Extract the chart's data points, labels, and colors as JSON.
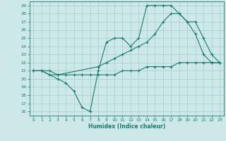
{
  "xlabel": "Humidex (Indice chaleur)",
  "background_color": "#cce8e8",
  "grid_color": "#aacccc",
  "line_color": "#1a7a6e",
  "xlim": [
    -0.5,
    23.5
  ],
  "ylim": [
    15.5,
    29.5
  ],
  "xticks": [
    0,
    1,
    2,
    3,
    4,
    5,
    6,
    7,
    8,
    9,
    10,
    11,
    12,
    13,
    14,
    15,
    16,
    17,
    18,
    19,
    20,
    21,
    22,
    23
  ],
  "yticks": [
    16,
    17,
    18,
    19,
    20,
    21,
    22,
    23,
    24,
    25,
    26,
    27,
    28,
    29
  ],
  "line1_x": [
    0,
    1,
    3,
    4,
    5,
    6,
    7,
    8,
    9,
    10,
    11,
    12,
    13,
    14,
    15,
    16,
    17,
    18,
    19,
    20,
    21,
    22,
    23
  ],
  "line1_y": [
    21,
    21,
    20,
    19.5,
    18.5,
    16.5,
    16,
    21,
    24.5,
    25,
    25,
    24,
    25,
    29,
    29,
    29,
    29,
    28,
    27,
    25.5,
    23,
    22,
    22
  ],
  "line2_x": [
    0,
    1,
    2,
    3,
    8,
    9,
    10,
    11,
    12,
    13,
    14,
    15,
    16,
    17,
    18,
    19,
    20,
    21,
    22,
    23
  ],
  "line2_y": [
    21,
    21,
    21,
    20.5,
    21.5,
    22,
    22.5,
    23,
    23.5,
    24,
    24.5,
    25.5,
    27,
    28,
    28,
    27,
    27,
    25,
    23,
    22
  ],
  "line3_x": [
    0,
    1,
    2,
    3,
    4,
    5,
    6,
    7,
    8,
    9,
    10,
    11,
    12,
    13,
    14,
    15,
    16,
    17,
    18,
    19,
    20,
    21,
    22,
    23
  ],
  "line3_y": [
    21,
    21,
    20.5,
    20.5,
    20.5,
    20.5,
    20.5,
    20.5,
    20.5,
    20.5,
    20.5,
    21,
    21,
    21,
    21.5,
    21.5,
    21.5,
    21.5,
    22,
    22,
    22,
    22,
    22,
    22
  ]
}
